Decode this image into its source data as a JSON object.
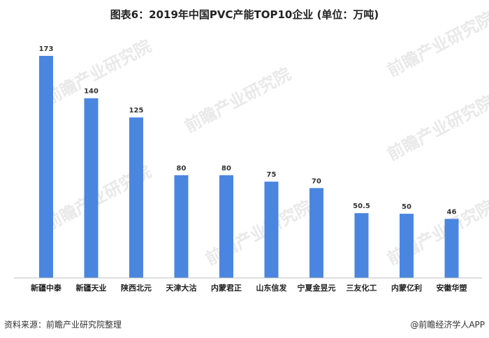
{
  "chart_data": {
    "type": "bar",
    "title": "图表6：2019年中国PVC产能TOP10企业 (单位：万吨)",
    "categories": [
      "新疆中泰",
      "新疆天业",
      "陕西北元",
      "天津大沽",
      "内蒙君正",
      "山东信发",
      "宁夏金昱元",
      "三友化工",
      "内蒙亿利",
      "安徽华塑"
    ],
    "values": [
      173,
      140,
      125,
      80,
      80,
      75,
      70,
      50.5,
      50,
      46
    ],
    "value_labels": [
      "173",
      "140",
      "125",
      "80",
      "80",
      "75",
      "70",
      "50.5",
      "50",
      "46"
    ],
    "xlabel": "",
    "ylabel": "",
    "ylim": [
      0,
      180
    ],
    "grid": false,
    "legend": "none",
    "bar_color": "#4a86e0"
  },
  "footer": {
    "source": "资料来源：前瞻产业研究院整理",
    "credit": "@前瞻经济学人APP"
  },
  "watermark": {
    "text": "前瞻产业研究院"
  }
}
